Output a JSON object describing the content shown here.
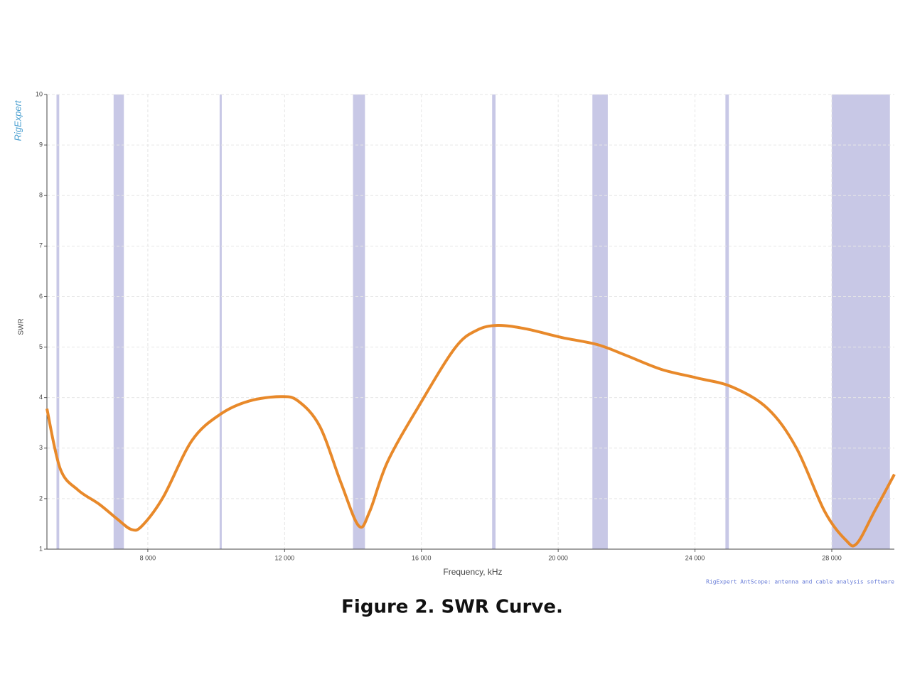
{
  "chart_data": {
    "type": "line",
    "title": "Figure 2.  SWR Curve.",
    "x_label": "Frequency, kHz",
    "y_label": "SWR",
    "watermark": "RigExpert",
    "footer": "RigExpert AntScope: antenna and cable analysis software",
    "xlim": [
      5050,
      29830
    ],
    "ylim": [
      1,
      10
    ],
    "xticks": [
      {
        "value": 8000,
        "label": "8 000"
      },
      {
        "value": 12000,
        "label": "12 000"
      },
      {
        "value": 16000,
        "label": "16 000"
      },
      {
        "value": 20000,
        "label": "20 000"
      },
      {
        "value": 24000,
        "label": "24 000"
      },
      {
        "value": 28000,
        "label": "28 000"
      }
    ],
    "yticks": [
      1,
      2,
      3,
      4,
      5,
      6,
      7,
      8,
      9,
      10
    ],
    "grid": true,
    "band_color": "#c8c8e6",
    "bands": [
      [
        5330,
        5410
      ],
      [
        7000,
        7300
      ],
      [
        10100,
        10150
      ],
      [
        14000,
        14350
      ],
      [
        18068,
        18168
      ],
      [
        21000,
        21450
      ],
      [
        24890,
        24990
      ],
      [
        28000,
        29700
      ]
    ],
    "series": [
      {
        "name": "SWR",
        "color": "#e8892a",
        "x": [
          5050,
          5440,
          5960,
          6580,
          7100,
          7520,
          7830,
          8450,
          9290,
          10120,
          10950,
          11890,
          12400,
          13030,
          13650,
          14170,
          14490,
          15010,
          15940,
          16980,
          17610,
          18230,
          19060,
          20100,
          21140,
          21970,
          23010,
          24050,
          25090,
          26130,
          26960,
          27790,
          28410,
          28730,
          29250,
          29830
        ],
        "values": [
          3.78,
          2.59,
          2.17,
          1.89,
          1.6,
          1.39,
          1.46,
          2.03,
          3.15,
          3.67,
          3.93,
          4.02,
          3.93,
          3.43,
          2.31,
          1.46,
          1.75,
          2.73,
          3.85,
          4.98,
          5.33,
          5.43,
          5.36,
          5.19,
          5.05,
          4.84,
          4.56,
          4.39,
          4.21,
          3.78,
          3.01,
          1.75,
          1.18,
          1.11,
          1.75,
          2.48
        ]
      }
    ]
  }
}
